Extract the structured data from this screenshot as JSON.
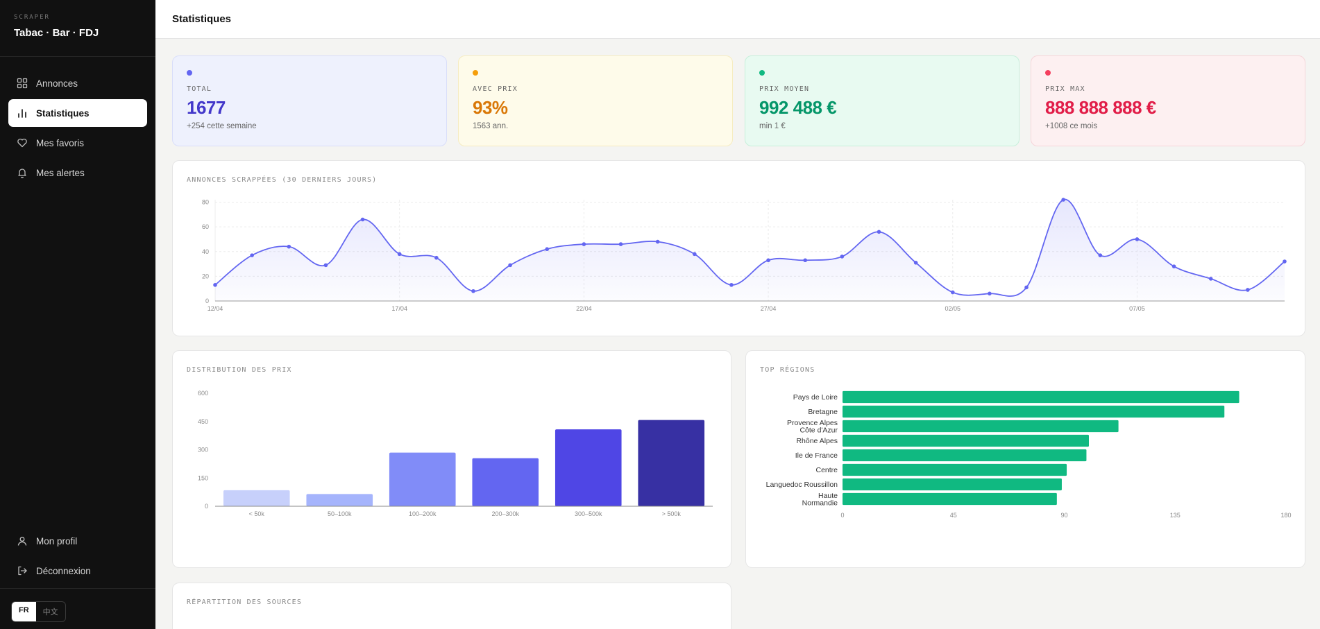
{
  "brand": {
    "kicker": "SCRAPER",
    "title": "Tabac · Bar · FDJ"
  },
  "nav": [
    {
      "label": "Annonces",
      "icon": "grid-icon",
      "active": false
    },
    {
      "label": "Statistiques",
      "icon": "bar-chart-icon",
      "active": true
    },
    {
      "label": "Mes favoris",
      "icon": "heart-icon",
      "active": false
    },
    {
      "label": "Mes alertes",
      "icon": "bell-icon",
      "active": false
    }
  ],
  "nav_bottom": [
    {
      "label": "Mon profil",
      "icon": "user-icon"
    },
    {
      "label": "Déconnexion",
      "icon": "logout-icon"
    }
  ],
  "lang": {
    "fr": "FR",
    "zh": "中文"
  },
  "page": {
    "title": "Statistiques"
  },
  "kpis": [
    {
      "label": "TOTAL",
      "value": "1677",
      "sub": "+254 cette semaine",
      "color": "#4338ca",
      "dot": "#6366f1",
      "bg": "#eef1fd",
      "border": "#d9defa"
    },
    {
      "label": "AVEC PRIX",
      "value": "93%",
      "sub": "1563 ann.",
      "color": "#d97706",
      "dot": "#f59e0b",
      "bg": "#fefbea",
      "border": "#f6ecc0"
    },
    {
      "label": "PRIX MOYEN",
      "value": "992 488 €",
      "sub": "min 1 €",
      "color": "#059669",
      "dot": "#10b981",
      "bg": "#e8faf1",
      "border": "#c7efdb"
    },
    {
      "label": "PRIX MAX",
      "value": "888 888 888 €",
      "sub": "+1008 ce mois",
      "color": "#e11d48",
      "dot": "#f43f5e",
      "bg": "#fdf0f1",
      "border": "#f6d5da"
    }
  ],
  "panels": {
    "line_title": "ANNONCES SCRAPPÉES (30 DERNIERS JOURS)",
    "price_title": "DISTRIBUTION DES PRIX",
    "regions_title": "TOP RÉGIONS",
    "sources_title": "RÉPARTITION DES SOURCES"
  },
  "chart_data": [
    {
      "type": "line",
      "title": "ANNONCES SCRAPPÉES (30 DERNIERS JOURS)",
      "x_tick_labels": [
        "12/04",
        "17/04",
        "22/04",
        "27/04",
        "02/05",
        "07/05"
      ],
      "y_ticks": [
        0,
        20,
        40,
        60,
        80
      ],
      "ylim": [
        0,
        82
      ],
      "color": "#6366f1",
      "values": [
        13,
        37,
        44,
        29,
        66,
        38,
        35,
        8,
        29,
        42,
        46,
        46,
        48,
        38,
        13,
        33,
        33,
        36,
        56,
        31,
        7,
        6,
        11,
        82,
        37,
        50,
        28,
        18,
        9,
        32
      ],
      "grid": true
    },
    {
      "type": "bar",
      "title": "DISTRIBUTION DES PRIX",
      "categories": [
        "< 50k",
        "50–100k",
        "100–200k",
        "200–300k",
        "300–500k",
        "> 500k"
      ],
      "values": [
        85,
        65,
        285,
        255,
        408,
        458
      ],
      "colors": [
        "#c7d0fb",
        "#a5b4fc",
        "#818cf8",
        "#6366f1",
        "#4f46e5",
        "#3730a3"
      ],
      "y_ticks": [
        0,
        150,
        300,
        450,
        600
      ],
      "ylim": [
        0,
        600
      ]
    },
    {
      "type": "bar",
      "orientation": "horizontal",
      "title": "TOP RÉGIONS",
      "categories": [
        [
          "Pays de Loire"
        ],
        [
          "Bretagne"
        ],
        [
          "Provence Alpes",
          "Côte d'Azur"
        ],
        [
          "Rhône Alpes"
        ],
        [
          "Ile de France"
        ],
        [
          "Centre"
        ],
        [
          "Languedoc Roussillon"
        ],
        [
          "Haute",
          "Normandie"
        ]
      ],
      "values": [
        161,
        155,
        112,
        100,
        99,
        91,
        89,
        87
      ],
      "color": "#10b981",
      "x_ticks": [
        0,
        45,
        90,
        135,
        180
      ],
      "xlim": [
        0,
        180
      ]
    }
  ]
}
